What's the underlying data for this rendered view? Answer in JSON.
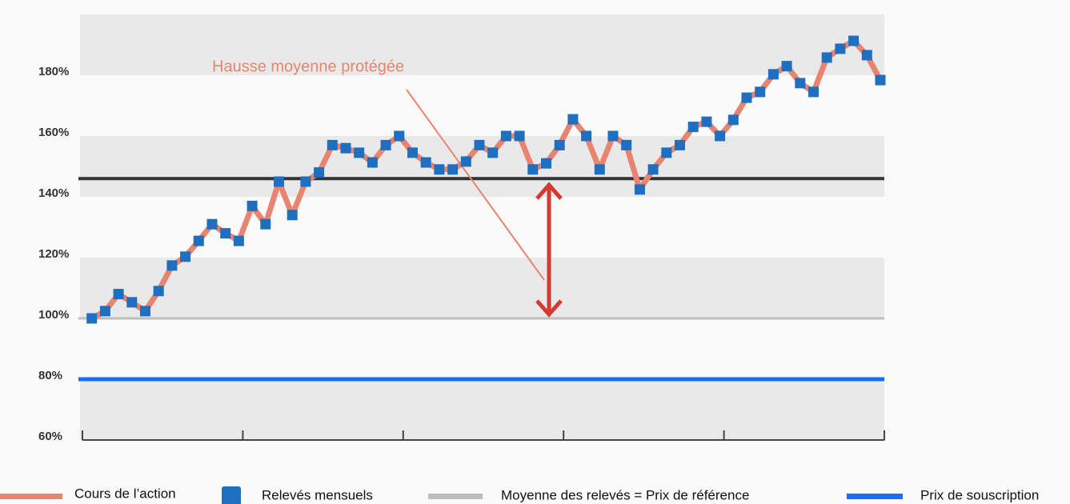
{
  "chart_data": {
    "type": "line",
    "series": [
      {
        "name": "Cours de l’action",
        "color": "#e8846f",
        "values": [
          100,
          102.4,
          108,
          105.3,
          102.4,
          109,
          117.4,
          120.3,
          125.5,
          131,
          128,
          125.5,
          137,
          131,
          145,
          134,
          145,
          148,
          157,
          156,
          154.5,
          151.3,
          157,
          160,
          154.5,
          151.3,
          149,
          149,
          151.6,
          157,
          154.5,
          160,
          160,
          149,
          151,
          157,
          165.5,
          160,
          149,
          160,
          157,
          142.4,
          149,
          154.5,
          157,
          163,
          164.7,
          160,
          165.3,
          172.6,
          174.5,
          180.3,
          183,
          177.4,
          174.5,
          185.8,
          188.7,
          191.3,
          186.6,
          178.4
        ]
      }
    ],
    "markers": {
      "name": "Relevés mensuels",
      "color": "#1f6fc0"
    },
    "reference_lines": [
      {
        "name": "Moyenne des relevés = Prix de référence",
        "value": 100,
        "color": "#bdbdbd"
      },
      {
        "name": "Prix de souscription",
        "value": 80,
        "color": "#1a6ff0"
      },
      {
        "value": 146,
        "color": "#333333"
      }
    ],
    "annotation": {
      "text": "Hausse moyenne protégée",
      "color": "#e8846f"
    },
    "ylim": [
      60,
      200
    ],
    "yticks": [
      {
        "value": 60,
        "label": "60%"
      },
      {
        "value": 80,
        "label": "80%"
      },
      {
        "value": 100,
        "label": "100%"
      },
      {
        "value": 120,
        "label": "120%"
      },
      {
        "value": 140,
        "label": "140%"
      },
      {
        "value": 160,
        "label": "160%"
      },
      {
        "value": 180,
        "label": "180%"
      }
    ],
    "bands": true
  }
}
